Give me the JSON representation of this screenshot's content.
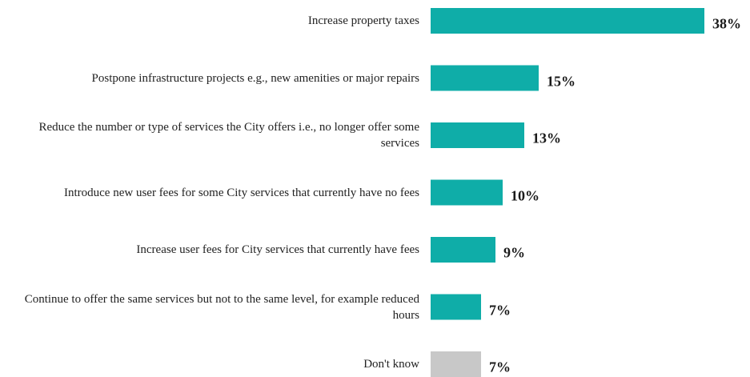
{
  "chart_data": {
    "type": "bar",
    "orientation": "horizontal",
    "categories": [
      "Increase property taxes",
      "Postpone infrastructure projects e.g., new amenities or major repairs",
      "Reduce the number or type of services the City offers i.e., no longer offer some services",
      "Introduce new user fees for some City services that currently have no fees",
      "Increase user fees for City services that currently have fees",
      "Continue to offer the same services but not to the same level, for example reduced hours",
      "Don't know"
    ],
    "values": [
      38,
      15,
      13,
      10,
      9,
      7,
      7
    ],
    "value_labels": [
      "38%",
      "15%",
      "13%",
      "10%",
      "9%",
      "7%",
      "7%"
    ],
    "colors": [
      "#0fada8",
      "#0fada8",
      "#0fada8",
      "#0fada8",
      "#0fada8",
      "#0fada8",
      "#c8c8c8"
    ]
  }
}
